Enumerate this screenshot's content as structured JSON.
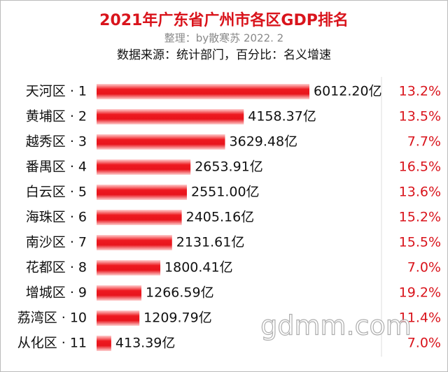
{
  "chart_data": {
    "type": "bar",
    "orientation": "horizontal",
    "title": "2021年广东省广州市各区GDP排名",
    "subtitle": "整理：by散寒苏  2022. 2",
    "source": "数据来源：统计部门，百分比：名义增速",
    "categories": [
      "天河区 · 1",
      "黄埔区 · 2",
      "越秀区 · 3",
      "番禺区 · 4",
      "白云区 · 5",
      "海珠区 · 6",
      "南沙区 · 7",
      "花都区 · 8",
      "增城区 · 9",
      "荔湾区 · 10",
      "从化区 · 11"
    ],
    "values": [
      6012.2,
      4158.37,
      3629.48,
      2653.91,
      2551.0,
      2405.16,
      2131.61,
      1800.41,
      1266.59,
      1209.79,
      413.39
    ],
    "value_labels": [
      "6012.20亿",
      "4158.37亿",
      "3629.48亿",
      "2653.91亿",
      "2551.00亿",
      "2405.16亿",
      "2131.61亿",
      "1800.41亿",
      "1266.59亿",
      "1209.79亿",
      "413.39亿"
    ],
    "color": "#e8141c",
    "growth": {
      "values": [
        13.2,
        13.5,
        7.7,
        16.5,
        13.6,
        15.2,
        15.5,
        7.0,
        19.2,
        11.4,
        7.0
      ],
      "value_labels": [
        "13.2%",
        "13.5%",
        "7.7%",
        "16.5%",
        "13.6%",
        "15.2%",
        "15.5%",
        "7.0%",
        "19.2%",
        "11.4%",
        "7.0%"
      ],
      "color": "#d9141c"
    },
    "watermark": "gdmm.com"
  }
}
